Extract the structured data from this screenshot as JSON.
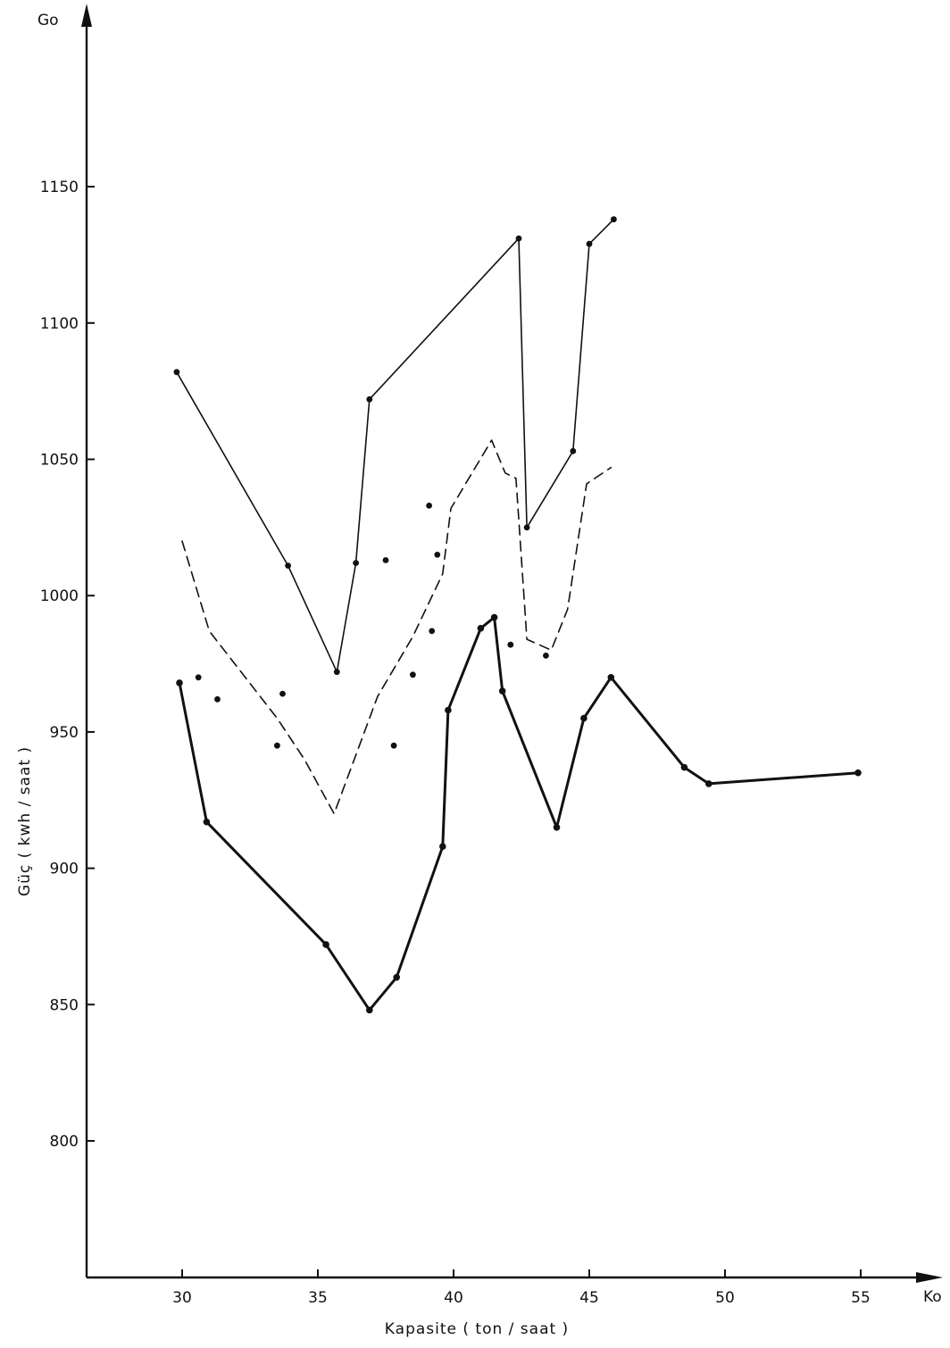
{
  "chart_data": {
    "type": "line",
    "title": "",
    "xlabel": "Kapasite ( ton / saat )",
    "ylabel": "Güç ( kwh / saat )",
    "x_axis_end_label": "Ko",
    "y_axis_end_label": "Go",
    "xlim": [
      26.5,
      57
    ],
    "ylim": [
      755,
      1215
    ],
    "x_ticks": [
      30,
      35,
      40,
      45,
      50,
      55
    ],
    "y_ticks": [
      800,
      850,
      900,
      950,
      1000,
      1050,
      1100,
      1150
    ],
    "series": [
      {
        "style": "thin-solid-markers",
        "x": [
          29.8,
          33.9,
          35.7,
          36.4,
          36.9,
          42.4,
          42.7,
          44.4,
          45.0,
          45.9
        ],
        "y": [
          1082,
          1011,
          972,
          1012,
          1072,
          1131,
          1025,
          1053,
          1129,
          1138
        ]
      },
      {
        "style": "dashed",
        "x": [
          30.0,
          31.0,
          33.5,
          34.5,
          35.6,
          37.2,
          38.5,
          39.6,
          39.9,
          41.4,
          41.9,
          42.3,
          42.7,
          43.6,
          44.2,
          44.9,
          45.8
        ],
        "y": [
          1020,
          987,
          955,
          940,
          920,
          963,
          985,
          1008,
          1032,
          1057,
          1045,
          1043,
          984,
          980,
          995,
          1041,
          1047
        ]
      },
      {
        "style": "thick-solid-markers",
        "x": [
          29.9,
          30.9,
          35.3,
          36.9,
          37.9,
          39.6,
          39.8,
          41.0,
          41.5,
          41.8,
          43.8,
          44.8,
          45.8,
          48.5,
          49.4,
          54.9
        ],
        "y": [
          968,
          917,
          872,
          848,
          860,
          908,
          958,
          988,
          992,
          965,
          915,
          955,
          970,
          937,
          931,
          935
        ]
      },
      {
        "style": "scatter-dots",
        "x": [
          30.6,
          31.3,
          33.5,
          33.7,
          37.5,
          37.8,
          38.5,
          39.2,
          39.1,
          39.4,
          42.1,
          43.4
        ],
        "y": [
          970,
          962,
          945,
          964,
          1013,
          945,
          971,
          987,
          1033,
          1015,
          982,
          978
        ]
      }
    ]
  }
}
